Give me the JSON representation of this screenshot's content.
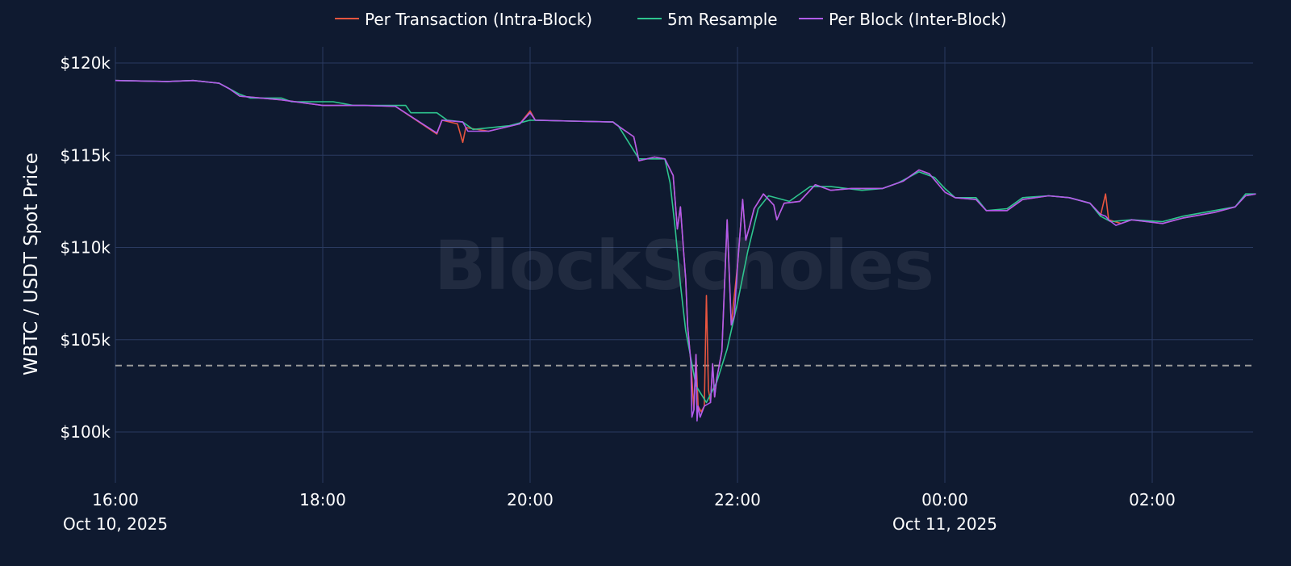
{
  "watermark": "BlockScholes",
  "colors": {
    "background": "#0f1a30",
    "grid": "#2a3a60",
    "reference_line": "#9a9a9a"
  },
  "chart_data": {
    "type": "line",
    "title": "",
    "xlabel": "",
    "ylabel": "WBTC / USDT Spot Price",
    "x_unit": "hours since 16:00 Oct 10, 2025",
    "x_ticks": [
      {
        "x": 0,
        "label": "16:00",
        "sublabel": "Oct 10, 2025"
      },
      {
        "x": 2,
        "label": "18:00",
        "sublabel": ""
      },
      {
        "x": 4,
        "label": "20:00",
        "sublabel": ""
      },
      {
        "x": 6,
        "label": "22:00",
        "sublabel": ""
      },
      {
        "x": 8,
        "label": "00:00",
        "sublabel": "Oct 11, 2025"
      },
      {
        "x": 10,
        "label": "02:00",
        "sublabel": ""
      }
    ],
    "y_ticks": [
      {
        "y": 100000,
        "label": "$100k"
      },
      {
        "y": 105000,
        "label": "$105k"
      },
      {
        "y": 110000,
        "label": "$110k"
      },
      {
        "y": 115000,
        "label": "$115k"
      },
      {
        "y": 120000,
        "label": "$120k"
      }
    ],
    "xlim": [
      0,
      11
    ],
    "ylim": [
      97500,
      121000
    ],
    "grid": true,
    "legend_position": "top-center",
    "reference_line": {
      "y": 103600,
      "style": "dashed"
    },
    "series": [
      {
        "name": "Per Transaction (Intra-Block)",
        "color": "#e8553f",
        "points": [
          [
            0,
            119050
          ],
          [
            0.5,
            119000
          ],
          [
            0.75,
            119050
          ],
          [
            1.0,
            118900
          ],
          [
            1.1,
            118600
          ],
          [
            1.2,
            118200
          ],
          [
            1.6,
            118000
          ],
          [
            2.0,
            117700
          ],
          [
            2.4,
            117700
          ],
          [
            2.7,
            117650
          ],
          [
            3.1,
            116150
          ],
          [
            3.15,
            116900
          ],
          [
            3.3,
            116700
          ],
          [
            3.35,
            115700
          ],
          [
            3.38,
            116500
          ],
          [
            3.6,
            116300
          ],
          [
            3.9,
            116700
          ],
          [
            4.0,
            117400
          ],
          [
            4.05,
            116900
          ],
          [
            4.4,
            116850
          ],
          [
            4.8,
            116800
          ],
          [
            4.82,
            116700
          ],
          [
            5.0,
            116000
          ],
          [
            5.05,
            114700
          ],
          [
            5.2,
            114900
          ],
          [
            5.3,
            114800
          ],
          [
            5.38,
            113900
          ],
          [
            5.42,
            111000
          ],
          [
            5.45,
            112200
          ],
          [
            5.48,
            109800
          ],
          [
            5.5,
            108300
          ],
          [
            5.52,
            105700
          ],
          [
            5.55,
            103800
          ],
          [
            5.58,
            101200
          ],
          [
            5.6,
            104200
          ],
          [
            5.62,
            101400
          ],
          [
            5.65,
            101100
          ],
          [
            5.68,
            101400
          ],
          [
            5.7,
            107400
          ],
          [
            5.72,
            102300
          ],
          [
            5.74,
            101600
          ],
          [
            5.76,
            103700
          ],
          [
            5.78,
            101900
          ],
          [
            5.8,
            102900
          ],
          [
            5.85,
            104400
          ],
          [
            5.9,
            111500
          ],
          [
            5.94,
            105800
          ],
          [
            6.0,
            109000
          ],
          [
            6.05,
            112600
          ],
          [
            6.08,
            110400
          ],
          [
            6.12,
            111200
          ],
          [
            6.16,
            112100
          ],
          [
            6.25,
            112900
          ],
          [
            6.35,
            112300
          ],
          [
            6.38,
            111500
          ],
          [
            6.45,
            112400
          ],
          [
            6.6,
            112500
          ],
          [
            6.75,
            113400
          ],
          [
            6.9,
            113100
          ],
          [
            7.1,
            113200
          ],
          [
            7.4,
            113200
          ],
          [
            7.6,
            113600
          ],
          [
            7.75,
            114200
          ],
          [
            7.85,
            114000
          ],
          [
            8.0,
            113000
          ],
          [
            8.1,
            112700
          ],
          [
            8.3,
            112600
          ],
          [
            8.4,
            112000
          ],
          [
            8.6,
            112000
          ],
          [
            8.75,
            112600
          ],
          [
            9.0,
            112800
          ],
          [
            9.2,
            112700
          ],
          [
            9.4,
            112400
          ],
          [
            9.5,
            111800
          ],
          [
            9.5,
            111700
          ],
          [
            9.55,
            112900
          ],
          [
            9.58,
            111500
          ],
          [
            9.7,
            111300
          ],
          [
            9.8,
            111500
          ],
          [
            10.1,
            111300
          ],
          [
            10.3,
            111600
          ],
          [
            10.6,
            111900
          ],
          [
            10.8,
            112200
          ],
          [
            10.9,
            112800
          ],
          [
            11.0,
            112900
          ]
        ]
      },
      {
        "name": "5m Resample",
        "color": "#2ec48e",
        "points": [
          [
            0,
            119050
          ],
          [
            0.5,
            119000
          ],
          [
            0.75,
            119050
          ],
          [
            1.0,
            118900
          ],
          [
            1.1,
            118600
          ],
          [
            1.2,
            118300
          ],
          [
            1.3,
            118100
          ],
          [
            1.6,
            118100
          ],
          [
            1.7,
            117900
          ],
          [
            2.1,
            117900
          ],
          [
            2.3,
            117700
          ],
          [
            2.6,
            117700
          ],
          [
            2.8,
            117700
          ],
          [
            2.85,
            117300
          ],
          [
            3.1,
            117300
          ],
          [
            3.2,
            116900
          ],
          [
            3.35,
            116800
          ],
          [
            3.45,
            116400
          ],
          [
            3.8,
            116600
          ],
          [
            4.0,
            116900
          ],
          [
            4.4,
            116850
          ],
          [
            4.8,
            116800
          ],
          [
            4.85,
            116600
          ],
          [
            5.05,
            114800
          ],
          [
            5.15,
            114800
          ],
          [
            5.3,
            114800
          ],
          [
            5.35,
            113500
          ],
          [
            5.4,
            111000
          ],
          [
            5.45,
            108000
          ],
          [
            5.5,
            105500
          ],
          [
            5.6,
            102500
          ],
          [
            5.7,
            101600
          ],
          [
            5.8,
            102700
          ],
          [
            5.9,
            104500
          ],
          [
            6.0,
            107000
          ],
          [
            6.1,
            109800
          ],
          [
            6.2,
            112100
          ],
          [
            6.3,
            112800
          ],
          [
            6.5,
            112500
          ],
          [
            6.7,
            113300
          ],
          [
            6.9,
            113300
          ],
          [
            7.2,
            113100
          ],
          [
            7.4,
            113200
          ],
          [
            7.55,
            113500
          ],
          [
            7.75,
            114100
          ],
          [
            7.9,
            113800
          ],
          [
            8.0,
            113200
          ],
          [
            8.1,
            112700
          ],
          [
            8.3,
            112700
          ],
          [
            8.4,
            112000
          ],
          [
            8.6,
            112100
          ],
          [
            8.75,
            112700
          ],
          [
            9.0,
            112800
          ],
          [
            9.2,
            112700
          ],
          [
            9.4,
            112400
          ],
          [
            9.5,
            111700
          ],
          [
            9.6,
            111400
          ],
          [
            9.8,
            111500
          ],
          [
            10.1,
            111400
          ],
          [
            10.3,
            111700
          ],
          [
            10.6,
            112000
          ],
          [
            10.8,
            112200
          ],
          [
            10.9,
            112900
          ],
          [
            11.0,
            112900
          ]
        ]
      },
      {
        "name": "Per Block (Inter-Block)",
        "color": "#b05ced",
        "points": [
          [
            0,
            119050
          ],
          [
            0.5,
            119000
          ],
          [
            0.75,
            119050
          ],
          [
            1.0,
            118900
          ],
          [
            1.1,
            118600
          ],
          [
            1.2,
            118200
          ],
          [
            1.6,
            118000
          ],
          [
            2.0,
            117700
          ],
          [
            2.4,
            117700
          ],
          [
            2.7,
            117650
          ],
          [
            3.1,
            116200
          ],
          [
            3.15,
            116900
          ],
          [
            3.35,
            116800
          ],
          [
            3.4,
            116300
          ],
          [
            3.6,
            116300
          ],
          [
            3.9,
            116700
          ],
          [
            4.0,
            117300
          ],
          [
            4.05,
            116900
          ],
          [
            4.4,
            116850
          ],
          [
            4.8,
            116800
          ],
          [
            4.82,
            116700
          ],
          [
            5.0,
            116000
          ],
          [
            5.05,
            114700
          ],
          [
            5.2,
            114900
          ],
          [
            5.3,
            114800
          ],
          [
            5.38,
            113900
          ],
          [
            5.42,
            111000
          ],
          [
            5.45,
            112200
          ],
          [
            5.48,
            109800
          ],
          [
            5.5,
            108300
          ],
          [
            5.52,
            105700
          ],
          [
            5.55,
            103800
          ],
          [
            5.56,
            100800
          ],
          [
            5.58,
            101200
          ],
          [
            5.6,
            104200
          ],
          [
            5.61,
            100600
          ],
          [
            5.62,
            101400
          ],
          [
            5.64,
            100800
          ],
          [
            5.68,
            101400
          ],
          [
            5.74,
            101600
          ],
          [
            5.76,
            103700
          ],
          [
            5.78,
            101900
          ],
          [
            5.8,
            102900
          ],
          [
            5.85,
            104400
          ],
          [
            5.9,
            111500
          ],
          [
            5.94,
            105800
          ],
          [
            5.97,
            106300
          ],
          [
            6.0,
            109000
          ],
          [
            6.05,
            112600
          ],
          [
            6.08,
            110400
          ],
          [
            6.12,
            111200
          ],
          [
            6.16,
            112100
          ],
          [
            6.25,
            112900
          ],
          [
            6.35,
            112300
          ],
          [
            6.38,
            111500
          ],
          [
            6.45,
            112400
          ],
          [
            6.6,
            112500
          ],
          [
            6.75,
            113400
          ],
          [
            6.9,
            113100
          ],
          [
            7.1,
            113200
          ],
          [
            7.4,
            113200
          ],
          [
            7.6,
            113600
          ],
          [
            7.75,
            114200
          ],
          [
            7.85,
            114000
          ],
          [
            8.0,
            113000
          ],
          [
            8.1,
            112700
          ],
          [
            8.3,
            112600
          ],
          [
            8.4,
            112000
          ],
          [
            8.6,
            112000
          ],
          [
            8.75,
            112600
          ],
          [
            9.0,
            112800
          ],
          [
            9.2,
            112700
          ],
          [
            9.4,
            112400
          ],
          [
            9.5,
            111800
          ],
          [
            9.55,
            111700
          ],
          [
            9.58,
            111500
          ],
          [
            9.65,
            111200
          ],
          [
            9.8,
            111500
          ],
          [
            10.1,
            111300
          ],
          [
            10.3,
            111600
          ],
          [
            10.6,
            111900
          ],
          [
            10.8,
            112200
          ],
          [
            10.9,
            112800
          ],
          [
            11.0,
            112900
          ]
        ]
      }
    ]
  }
}
